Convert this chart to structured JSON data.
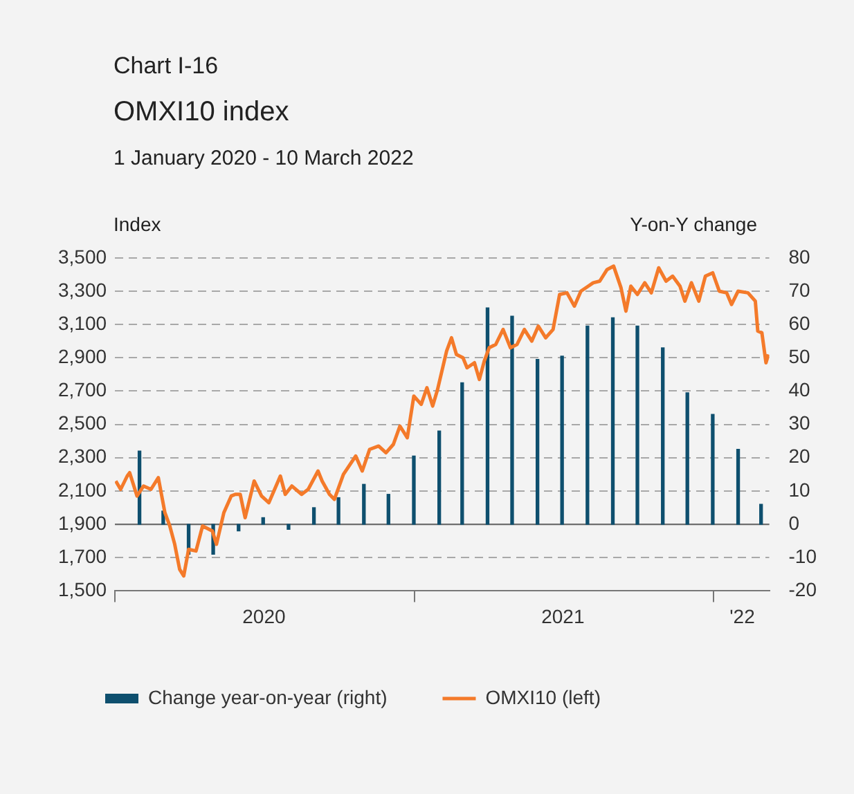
{
  "chart_data": {
    "type": "bar",
    "title": "OMXI10 index",
    "subtitle": "1 January 2020 - 10 March 2022",
    "annotations": [
      "Chart I-16"
    ],
    "ylabel": "Index",
    "y2label": "Y-on-Y change",
    "xlim": [
      "2020-01-01",
      "2022-03-10"
    ],
    "xticks": [
      {
        "value": "2020-01-01",
        "label": null
      },
      {
        "value": "2020-07-01",
        "label": "2020"
      },
      {
        "value": "2021-01-01",
        "label": null
      },
      {
        "value": "2021-07-01",
        "label": "2021"
      },
      {
        "value": "2022-01-01",
        "label": null
      },
      {
        "value": "2022-02-05",
        "label": "'22"
      }
    ],
    "ylim": [
      1500,
      3500
    ],
    "yticks": [
      {
        "value": 1500,
        "label": "1,500"
      },
      {
        "value": 1700,
        "label": "1,700"
      },
      {
        "value": 1900,
        "label": "1,900"
      },
      {
        "value": 2100,
        "label": "2,100"
      },
      {
        "value": 2300,
        "label": "2,300"
      },
      {
        "value": 2500,
        "label": "2,500"
      },
      {
        "value": 2700,
        "label": "2,700"
      },
      {
        "value": 2900,
        "label": "2,900"
      },
      {
        "value": 3100,
        "label": "3,100"
      },
      {
        "value": 3300,
        "label": "3,300"
      },
      {
        "value": 3500,
        "label": "3,500"
      }
    ],
    "y2lim": [
      -20,
      80
    ],
    "y2ticks": [
      -20,
      -10,
      0,
      10,
      20,
      30,
      40,
      50,
      60,
      70,
      80
    ],
    "grid": "y",
    "legend": "bottom",
    "marker": "none",
    "ref_lines": [
      {
        "axis": "y2",
        "value": 0,
        "color": "#6e6e6e"
      }
    ],
    "series": [
      {
        "name": "Change year-on-year (right)",
        "axis": "y2",
        "color": "#0e4f6e",
        "x": [
          "2020-01-31",
          "2020-02-29",
          "2020-03-31",
          "2020-04-30",
          "2020-05-31",
          "2020-06-30",
          "2020-07-31",
          "2020-08-31",
          "2020-09-30",
          "2020-10-31",
          "2020-11-30",
          "2020-12-31",
          "2021-01-31",
          "2021-02-28",
          "2021-03-31",
          "2021-04-30",
          "2021-05-31",
          "2021-06-30",
          "2021-07-31",
          "2021-08-31",
          "2021-09-30",
          "2021-10-31",
          "2021-11-30",
          "2021-12-31",
          "2022-01-31",
          "2022-02-28"
        ],
        "values": [
          22,
          4,
          -9,
          -9,
          -2,
          2,
          -1.5,
          5,
          8,
          12,
          9,
          20.5,
          28,
          42.5,
          65,
          62.5,
          49.5,
          50.5,
          59.5,
          62,
          59.5,
          53,
          39.5,
          33,
          22.5,
          6
        ]
      },
      {
        "name": "OMXI10 (left)",
        "type": "line",
        "axis": "y",
        "color": "#f47a2a",
        "x": [
          "2020-01-02",
          "2020-01-08",
          "2020-01-16",
          "2020-01-19",
          "2020-01-28",
          "2020-02-05",
          "2020-02-14",
          "2020-02-23",
          "2020-03-02",
          "2020-03-08",
          "2020-03-14",
          "2020-03-20",
          "2020-03-25",
          "2020-03-31",
          "2020-04-09",
          "2020-04-17",
          "2020-04-29",
          "2020-05-04",
          "2020-05-13",
          "2020-05-22",
          "2020-05-27",
          "2020-06-02",
          "2020-06-08",
          "2020-06-19",
          "2020-06-28",
          "2020-07-07",
          "2020-07-21",
          "2020-07-27",
          "2020-08-04",
          "2020-08-16",
          "2020-08-24",
          "2020-09-05",
          "2020-09-10",
          "2020-09-19",
          "2020-09-25",
          "2020-10-06",
          "2020-10-21",
          "2020-10-29",
          "2020-11-07",
          "2020-11-18",
          "2020-11-27",
          "2020-12-06",
          "2020-12-14",
          "2020-12-23",
          "2020-12-31",
          "2021-01-09",
          "2021-01-16",
          "2021-01-23",
          "2021-01-29",
          "2021-02-09",
          "2021-02-15",
          "2021-02-21",
          "2021-03-01",
          "2021-03-06",
          "2021-03-15",
          "2021-03-21",
          "2021-03-27",
          "2021-04-02",
          "2021-04-10",
          "2021-04-19",
          "2021-04-28",
          "2021-05-06",
          "2021-05-15",
          "2021-05-24",
          "2021-06-01",
          "2021-06-10",
          "2021-06-19",
          "2021-06-27",
          "2021-07-06",
          "2021-07-15",
          "2021-07-23",
          "2021-08-01",
          "2021-08-07",
          "2021-08-15",
          "2021-08-24",
          "2021-09-01",
          "2021-09-10",
          "2021-09-16",
          "2021-09-22",
          "2021-09-30",
          "2021-10-09",
          "2021-10-17",
          "2021-10-26",
          "2021-11-04",
          "2021-11-12",
          "2021-11-21",
          "2021-11-27",
          "2021-12-05",
          "2021-12-14",
          "2021-12-22",
          "2021-12-31",
          "2022-01-08",
          "2022-01-17",
          "2022-01-23",
          "2022-01-31",
          "2022-02-12",
          "2022-02-21",
          "2022-02-24",
          "2022-03-01",
          "2022-03-06",
          "2022-03-09"
        ],
        "values": [
          2160,
          2110,
          2190,
          2210,
          2070,
          2130,
          2110,
          2180,
          1970,
          1890,
          1780,
          1630,
          1590,
          1750,
          1740,
          1890,
          1860,
          1780,
          1970,
          2070,
          2080,
          2080,
          1940,
          2160,
          2070,
          2030,
          2190,
          2080,
          2130,
          2080,
          2110,
          2220,
          2160,
          2080,
          2050,
          2200,
          2310,
          2220,
          2350,
          2370,
          2330,
          2380,
          2490,
          2420,
          2670,
          2620,
          2720,
          2610,
          2710,
          2940,
          3020,
          2920,
          2900,
          2840,
          2870,
          2770,
          2880,
          2960,
          2980,
          3070,
          2960,
          2980,
          3070,
          3000,
          3090,
          3020,
          3070,
          3280,
          3290,
          3210,
          3300,
          3330,
          3350,
          3360,
          3430,
          3450,
          3320,
          3180,
          3330,
          3280,
          3350,
          3290,
          3440,
          3360,
          3390,
          3330,
          3240,
          3350,
          3240,
          3390,
          3410,
          3300,
          3290,
          3220,
          3300,
          3290,
          3240,
          3060,
          3050,
          2870,
          2920
        ]
      }
    ]
  }
}
